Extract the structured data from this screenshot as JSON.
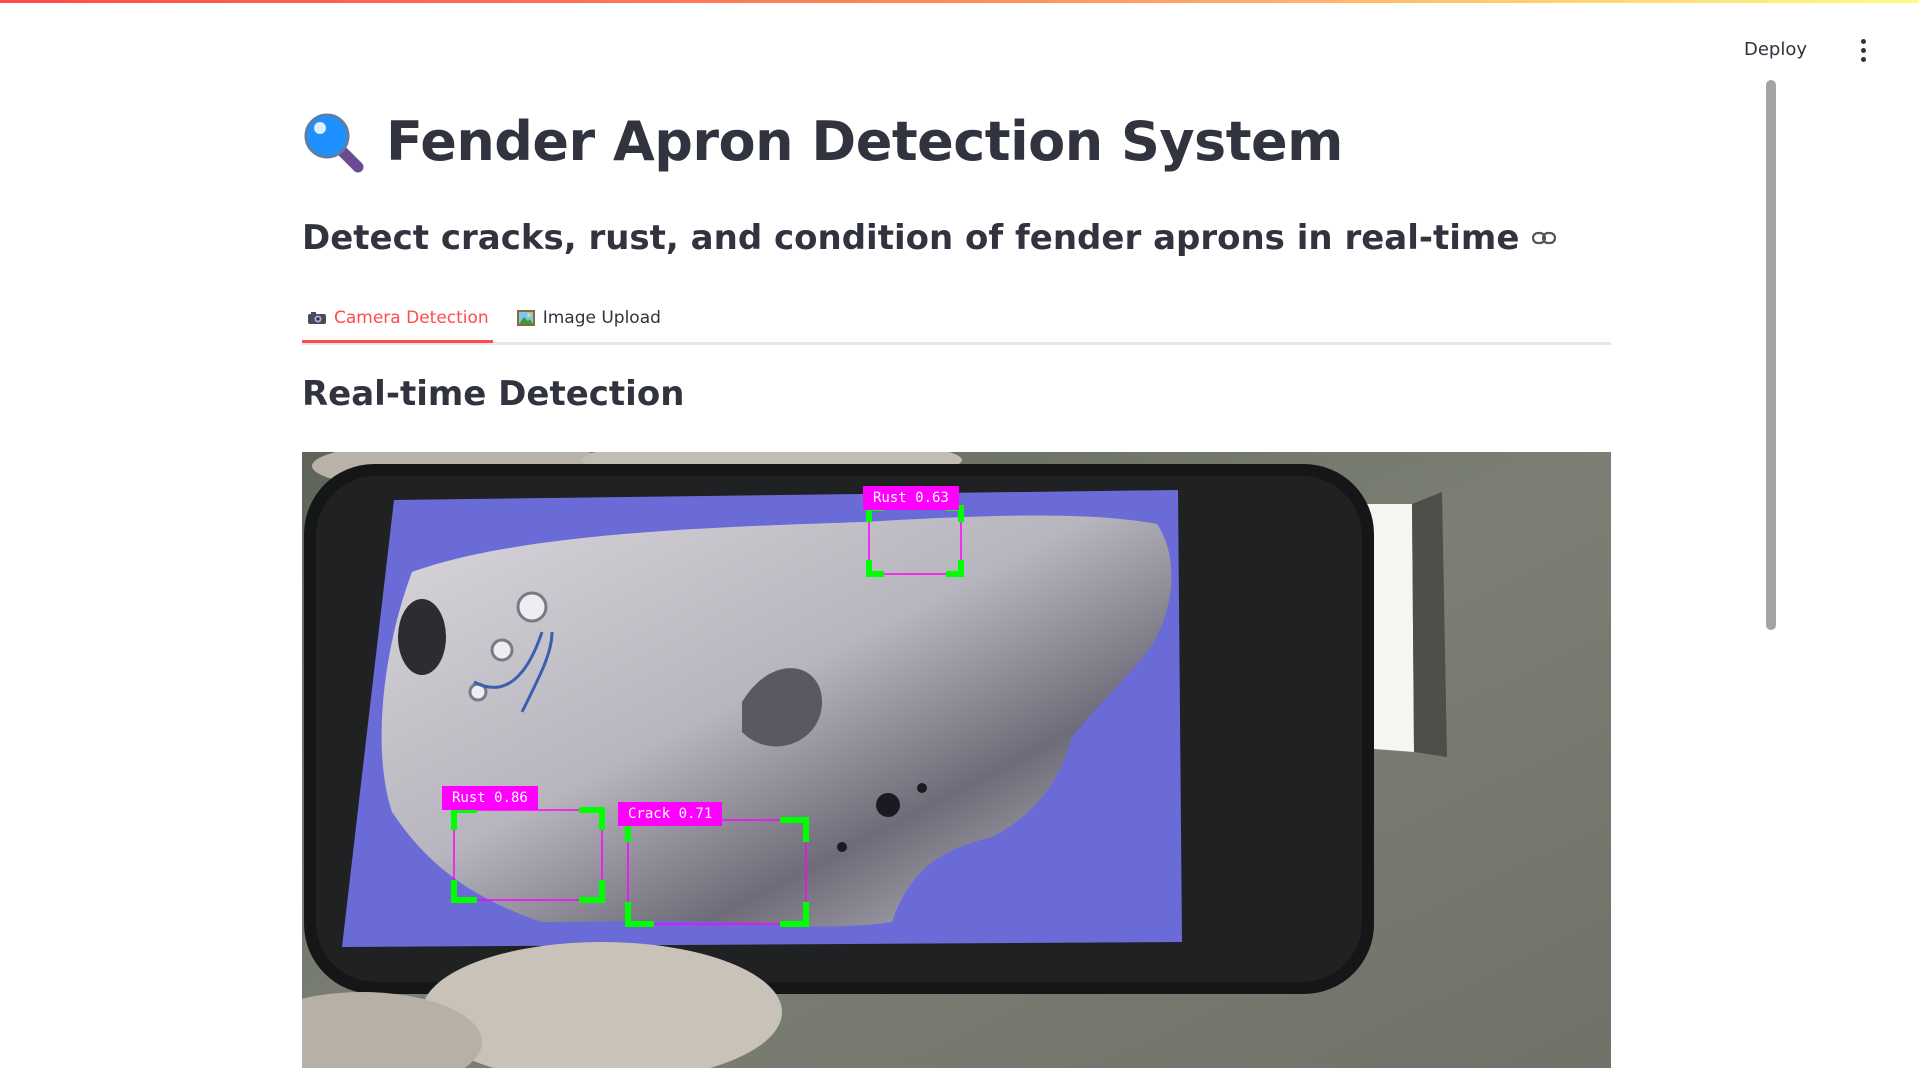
{
  "header": {
    "deploy_label": "Deploy",
    "menu_icon": "vertical-dots-icon"
  },
  "page": {
    "title_icon": "magnifying-glass-icon",
    "title": "Fender Apron Detection System",
    "subtitle": "Detect cracks, rust, and condition of fender aprons in real-time",
    "subtitle_link_icon": "link-icon"
  },
  "tabs": [
    {
      "label": "Camera Detection",
      "icon": "camera-icon",
      "active": true
    },
    {
      "label": "Image Upload",
      "icon": "picture-icon",
      "active": false
    }
  ],
  "section": {
    "heading": "Real-time Detection"
  },
  "detections": [
    {
      "label": "Rust 0.63",
      "class": "Rust",
      "confidence": 0.63
    },
    {
      "label": "Rust 0.86",
      "class": "Rust",
      "confidence": 0.86
    },
    {
      "label": "Crack 0.71",
      "class": "Crack",
      "confidence": 0.71
    }
  ],
  "colors": {
    "accent": "#ff4b4b",
    "text": "#31333f",
    "detection_label_bg": "#ff00ff",
    "detection_box": "#00ff00"
  }
}
